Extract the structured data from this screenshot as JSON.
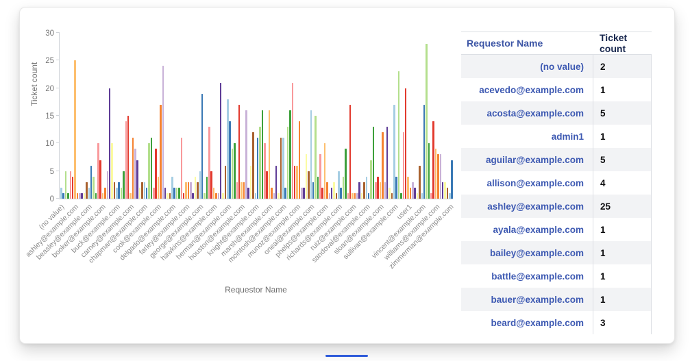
{
  "chart_data": {
    "type": "bar",
    "title": "",
    "xlabel": "Requestor Name",
    "ylabel": "Ticket count",
    "ylim": [
      0,
      30
    ],
    "yticks": [
      0,
      5,
      10,
      15,
      20,
      25,
      30
    ],
    "grid": false,
    "legend": false,
    "x_tick_every_n_bars": 6,
    "bar_color_palette": [
      "#a6cee3",
      "#3a79b5",
      "#b4df8d",
      "#3da03b",
      "#f9999b",
      "#e23a2e",
      "#fdbf6f",
      "#f58231",
      "#c9b2d8",
      "#5f3d97",
      "#fbfba2",
      "#a8612f"
    ],
    "x_tick_labels": [
      "(no value)",
      "ashley@example.com",
      "beasley@example.com",
      "booker@example.com",
      "buck@example.com",
      "carney@example.com",
      "chapman@example.com",
      "cook@example.com",
      "delgado@example.com",
      "farley@example.com",
      "george@example.com",
      "hawkins@example.com",
      "herman@example.com",
      "houston@example.com",
      "knight@example.com",
      "marsh@example.com",
      "mcintosh@example.com",
      "munoz@example.com",
      "oneal@example.com",
      "phelps@example.com",
      "richards@example.com",
      "ruiz@example.com",
      "sandoval@example.com",
      "sloan@example.com",
      "sullivan@example.com",
      "user1",
      "vincent@example.com",
      "williams@example.com",
      "zimmerman@example.com"
    ],
    "values": [
      2,
      1,
      5,
      1,
      5,
      4,
      25,
      1,
      1,
      1,
      1,
      3,
      2,
      6,
      4,
      1,
      10,
      7,
      1,
      2,
      5,
      20,
      10,
      3,
      2,
      3,
      2,
      5,
      14,
      15,
      1,
      11,
      9,
      7,
      2,
      3,
      3,
      2,
      10,
      11,
      2,
      9,
      4,
      17,
      24,
      2,
      1,
      1,
      4,
      2,
      2,
      2,
      11,
      1,
      3,
      3,
      3,
      1,
      4,
      3,
      5,
      19,
      1,
      4,
      13,
      5,
      2,
      1,
      1,
      21,
      1,
      6,
      18,
      14,
      9,
      10,
      3,
      17,
      3,
      3,
      16,
      2,
      6,
      12,
      1,
      11,
      13,
      16,
      10,
      5,
      16,
      2,
      1,
      6,
      1,
      11,
      11,
      2,
      13,
      16,
      21,
      6,
      6,
      14,
      2,
      2,
      8,
      5,
      16,
      3,
      15,
      4,
      8,
      2,
      10,
      3,
      1,
      2,
      3,
      1,
      5,
      2,
      4,
      9,
      1,
      17,
      1,
      1,
      1,
      3,
      1,
      3,
      4,
      1,
      7,
      13,
      3,
      4,
      3,
      12,
      3,
      13,
      2,
      1,
      17,
      4,
      23,
      1,
      12,
      20,
      4,
      2,
      3,
      2,
      1,
      6,
      1,
      17,
      28,
      10,
      1,
      14,
      9,
      8,
      8,
      3,
      3,
      2,
      1,
      7
    ]
  },
  "table": {
    "headers": [
      "Requestor Name",
      "Ticket count"
    ],
    "rows": [
      {
        "name": "(no value)",
        "count": "2"
      },
      {
        "name": "acevedo@example.com",
        "count": "1"
      },
      {
        "name": "acosta@example.com",
        "count": "5"
      },
      {
        "name": "admin1",
        "count": "1"
      },
      {
        "name": "aguilar@example.com",
        "count": "5"
      },
      {
        "name": "allison@example.com",
        "count": "4"
      },
      {
        "name": "ashley@example.com",
        "count": "25"
      },
      {
        "name": "ayala@example.com",
        "count": "1"
      },
      {
        "name": "bailey@example.com",
        "count": "1"
      },
      {
        "name": "battle@example.com",
        "count": "1"
      },
      {
        "name": "bauer@example.com",
        "count": "1"
      },
      {
        "name": "beard@example.com",
        "count": "3"
      }
    ]
  },
  "accent": {
    "bottom_line_color": "#2e5bda"
  }
}
